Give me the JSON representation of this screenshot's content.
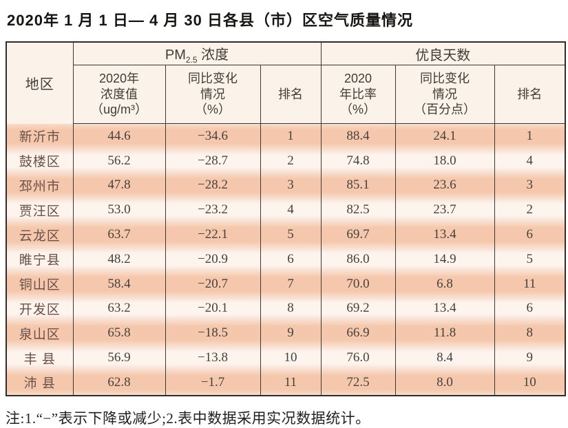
{
  "title": "2020年 1 月 1 日— 4 月 30 日各县（市）区空气质量情况",
  "table": {
    "region_header": "地区",
    "groups": [
      {
        "prefix": "PM",
        "sub": "2.5",
        "suffix": " 浓度"
      },
      {
        "label": "优良天数"
      }
    ],
    "columns": [
      {
        "lines": [
          "2020年",
          "浓度值",
          "（ug/m³）"
        ]
      },
      {
        "lines": [
          "同比变化",
          "情况",
          "（%）"
        ]
      },
      {
        "lines": [
          "排名"
        ]
      },
      {
        "lines": [
          "2020",
          "年比率",
          "（%）"
        ]
      },
      {
        "lines": [
          "同比变化",
          "情况",
          "（百分点）"
        ]
      },
      {
        "lines": [
          "排名"
        ]
      }
    ],
    "rows": [
      {
        "region": "新沂市",
        "pm": "44.6",
        "pm_change": "−34.6",
        "pm_rank": "1",
        "days": "88.4",
        "days_change": "24.1",
        "days_rank": "1"
      },
      {
        "region": "鼓楼区",
        "pm": "56.2",
        "pm_change": "−28.7",
        "pm_rank": "2",
        "days": "74.8",
        "days_change": "18.0",
        "days_rank": "4"
      },
      {
        "region": "邳州市",
        "pm": "47.8",
        "pm_change": "−28.2",
        "pm_rank": "3",
        "days": "85.1",
        "days_change": "23.6",
        "days_rank": "3"
      },
      {
        "region": "贾汪区",
        "pm": "53.0",
        "pm_change": "−23.2",
        "pm_rank": "4",
        "days": "82.5",
        "days_change": "23.7",
        "days_rank": "2"
      },
      {
        "region": "云龙区",
        "pm": "63.7",
        "pm_change": "−22.1",
        "pm_rank": "5",
        "days": "69.7",
        "days_change": "13.4",
        "days_rank": "6"
      },
      {
        "region": "睢宁县",
        "pm": "48.2",
        "pm_change": "−20.9",
        "pm_rank": "6",
        "days": "86.0",
        "days_change": "14.9",
        "days_rank": "5"
      },
      {
        "region": "铜山区",
        "pm": "58.4",
        "pm_change": "−20.7",
        "pm_rank": "7",
        "days": "70.0",
        "days_change": "6.8",
        "days_rank": "11"
      },
      {
        "region": "开发区",
        "pm": "63.2",
        "pm_change": "−20.1",
        "pm_rank": "8",
        "days": "69.2",
        "days_change": "13.4",
        "days_rank": "6"
      },
      {
        "region": "泉山区",
        "pm": "65.8",
        "pm_change": "−18.5",
        "pm_rank": "9",
        "days": "66.9",
        "days_change": "11.8",
        "days_rank": "8"
      },
      {
        "region": "丰 县",
        "pm": "56.9",
        "pm_change": "−13.8",
        "pm_rank": "10",
        "days": "76.0",
        "days_change": "8.4",
        "days_rank": "9"
      },
      {
        "region": "沛 县",
        "pm": "62.8",
        "pm_change": "−1.7",
        "pm_rank": "11",
        "days": "72.5",
        "days_change": "8.0",
        "days_rank": "10"
      }
    ]
  },
  "note": "注:1.“−”表示下降或减少;2.表中数据采用实况数据统计。",
  "colors": {
    "row_salmon": "#f5c8ad",
    "row_salmon_edge": "#f9dcca",
    "row_light": "#fdf4ee",
    "row_light_edge": "#f6dbcd",
    "header_bg": "#fbf2e9",
    "grid_border": "#2e2b28",
    "region_text": "#6a5047",
    "number_text": "#47413c"
  }
}
